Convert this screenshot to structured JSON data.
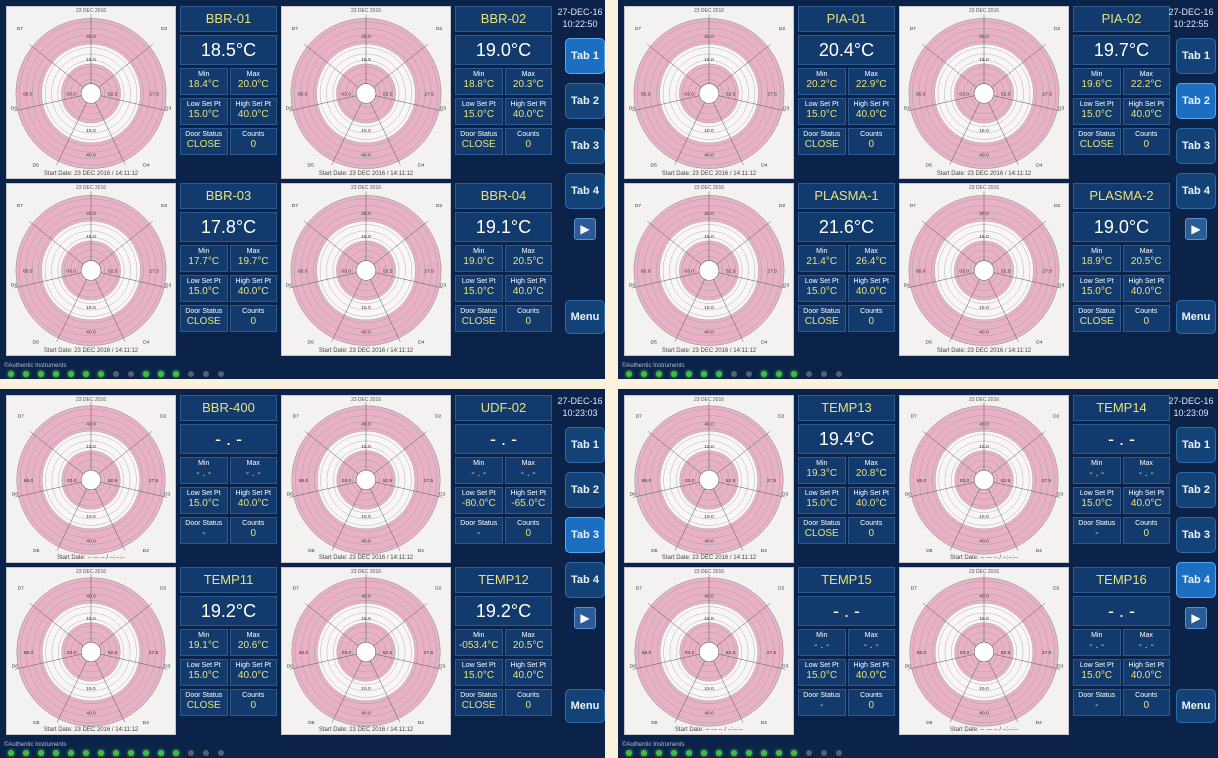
{
  "chart_date": "23 DEC 2016",
  "chart_labels": {
    "r1": "15.0",
    "r2": "40.0",
    "spoke_a": "27.5",
    "spoke_b": "52.5",
    "spoke_c": "65.0",
    "spoke_d": "03.0",
    "d1": "D1",
    "d2": "D2",
    "d3": "D3",
    "d4": "D4",
    "d5": "D5",
    "d6": "D6",
    "d7": "D7"
  },
  "labels": {
    "min": "Min",
    "max": "Max",
    "low": "Low Set Pt",
    "high": "High Set Pt",
    "door": "Door Status",
    "counts": "Counts",
    "tab1": "Tab 1",
    "tab2": "Tab 2",
    "tab3": "Tab 3",
    "tab4": "Tab 4",
    "next": "▶",
    "menu": "Menu"
  },
  "footer": "©Authentic Instruments",
  "colors": {
    "chart_band": "#eab1c6",
    "grid": "#6ea58f",
    "trace": "#d22a2a",
    "value": "#e6e27a",
    "background": "#0b2348",
    "active_tab": "#1c6fc0"
  },
  "screens": [
    {
      "date": "27-DEC-16",
      "time": "10:22:50",
      "active_tab": 1,
      "leds": [
        1,
        1,
        1,
        1,
        1,
        1,
        1,
        0,
        0,
        1,
        1,
        1,
        0,
        0,
        0
      ],
      "channels": [
        {
          "name": "BBR-01",
          "temp": "18.5°C",
          "min": "18.4°C",
          "max": "20.0°C",
          "low": "15.0°C",
          "high": "40.0°C",
          "door": "CLOSE",
          "counts": "0",
          "start": "Start Date: 23 DEC 2016 / 14:11:12"
        },
        {
          "name": "BBR-02",
          "temp": "19.0°C",
          "min": "18.8°C",
          "max": "20.3°C",
          "low": "15.0°C",
          "high": "40.0°C",
          "door": "CLOSE",
          "counts": "0",
          "start": "Start Date: 23 DEC 2016 / 14:11:12"
        },
        {
          "name": "BBR-03",
          "temp": "17.8°C",
          "min": "17.7°C",
          "max": "19.7°C",
          "low": "15.0°C",
          "high": "40.0°C",
          "door": "CLOSE",
          "counts": "0",
          "start": "Start Date: 23 DEC 2016 / 14:11:12"
        },
        {
          "name": "BBR-04",
          "temp": "19.1°C",
          "min": "19.0°C",
          "max": "20.5°C",
          "low": "15.0°C",
          "high": "40.0°C",
          "door": "CLOSE",
          "counts": "0",
          "start": "Start Date: 23 DEC 2016 / 14:11:12"
        }
      ]
    },
    {
      "date": "27-DEC-16",
      "time": "10:22:55",
      "active_tab": 2,
      "leds": [
        1,
        1,
        1,
        1,
        1,
        1,
        1,
        0,
        0,
        1,
        1,
        1,
        0,
        0,
        0
      ],
      "channels": [
        {
          "name": "PIA-01",
          "temp": "20.4°C",
          "min": "20.2°C",
          "max": "22.9°C",
          "low": "15.0°C",
          "high": "40.0°C",
          "door": "CLOSE",
          "counts": "0",
          "start": "Start Date: 23 DEC 2016 / 14:11:12"
        },
        {
          "name": "PIA-02",
          "temp": "19.7°C",
          "min": "19.6°C",
          "max": "22.2°C",
          "low": "15.0°C",
          "high": "40.0°C",
          "door": "CLOSE",
          "counts": "0",
          "start": "Start Date: 23 DEC 2016 / 14:11:12"
        },
        {
          "name": "PLASMA-1",
          "temp": "21.6°C",
          "min": "21.4°C",
          "max": "26.4°C",
          "low": "15.0°C",
          "high": "40.0°C",
          "door": "CLOSE",
          "counts": "0",
          "start": "Start Date: 23 DEC 2016 / 14:11:12"
        },
        {
          "name": "PLASMA-2",
          "temp": "19.0°C",
          "min": "18.9°C",
          "max": "20.5°C",
          "low": "15.0°C",
          "high": "40.0°C",
          "door": "CLOSE",
          "counts": "0",
          "start": "Start Date: 23 DEC 2016 / 14:11:12"
        }
      ]
    },
    {
      "date": "27-DEC-16",
      "time": "10:23:03",
      "active_tab": 3,
      "leds": [
        1,
        1,
        1,
        1,
        1,
        1,
        1,
        1,
        1,
        1,
        1,
        1,
        0,
        0,
        0
      ],
      "channels": [
        {
          "name": "BBR-400",
          "temp": "- . -",
          "min": "- . -",
          "max": "- . -",
          "low": "15.0°C",
          "high": "40.0°C",
          "door": "-",
          "counts": "0",
          "start": "Start Date: -- --- -- / --:--:--"
        },
        {
          "name": "UDF-02",
          "temp": "- . -",
          "min": "- . -",
          "max": "- . -",
          "low": "-80.0°C",
          "high": "-65.0°C",
          "door": "-",
          "counts": "0",
          "start": "Start Date: 23 DEC 2016 / 14:11:12"
        },
        {
          "name": "TEMP11",
          "temp": "19.2°C",
          "min": "19.1°C",
          "max": "20.6°C",
          "low": "15.0°C",
          "high": "40.0°C",
          "door": "CLOSE",
          "counts": "0",
          "start": "Start Date: 23 DEC 2016 / 14:11:12"
        },
        {
          "name": "TEMP12",
          "temp": "19.2°C",
          "min": "-053.4°C",
          "max": "20.5°C",
          "low": "15.0°C",
          "high": "40.0°C",
          "door": "CLOSE",
          "counts": "0",
          "start": "Start Date: 23 DEC 2016 / 14:11:12"
        }
      ]
    },
    {
      "date": "27-DEC-16",
      "time": "10:23:09",
      "active_tab": 4,
      "leds": [
        1,
        1,
        1,
        1,
        1,
        1,
        1,
        1,
        1,
        1,
        1,
        1,
        0,
        0,
        0
      ],
      "channels": [
        {
          "name": "TEMP13",
          "temp": "19.4°C",
          "min": "19.3°C",
          "max": "20.8°C",
          "low": "15.0°C",
          "high": "40.0°C",
          "door": "CLOSE",
          "counts": "0",
          "start": "Start Date: 23 DEC 2016 / 14:11:12"
        },
        {
          "name": "TEMP14",
          "temp": "- . -",
          "min": "- . -",
          "max": "- . -",
          "low": "15.0°C",
          "high": "40.0°C",
          "door": "-",
          "counts": "0",
          "start": "Start Date: -- --- -- / --:--:--"
        },
        {
          "name": "TEMP15",
          "temp": "- . -",
          "min": "- . -",
          "max": "- . -",
          "low": "15.0°C",
          "high": "40.0°C",
          "door": "-",
          "counts": "0",
          "start": "Start Date: -- --- -- / --:--:--"
        },
        {
          "name": "TEMP16",
          "temp": "- . -",
          "min": "- . -",
          "max": "- . -",
          "low": "15.0°C",
          "high": "40.0°C",
          "door": "-",
          "counts": "0",
          "start": "Start Date: -- --- -- / --:--:--"
        }
      ]
    }
  ]
}
